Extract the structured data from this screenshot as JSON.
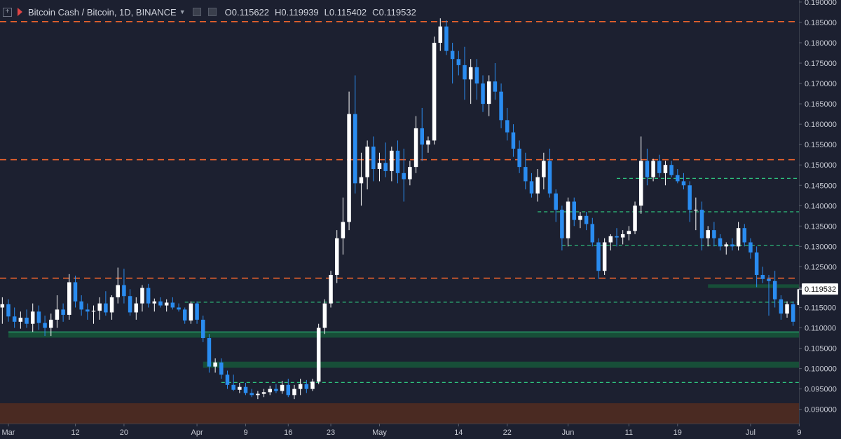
{
  "header": {
    "title": "Bitcoin Cash / Bitcoin, 1D, BINANCE",
    "ohlc": [
      {
        "label": "O",
        "value": "0.115622"
      },
      {
        "label": "H",
        "value": "0.119939"
      },
      {
        "label": "L",
        "value": "0.115402"
      },
      {
        "label": "C",
        "value": "0.119532"
      }
    ]
  },
  "chart_data": {
    "type": "candlestick",
    "symbol": "BCH/BTC",
    "interval": "1D",
    "exchange": "BINANCE",
    "ylim": [
      0.0865,
      0.1905
    ],
    "y_ticks": [
      "0.190000",
      "0.185000",
      "0.180000",
      "0.175000",
      "0.170000",
      "0.165000",
      "0.160000",
      "0.155000",
      "0.150000",
      "0.145000",
      "0.140000",
      "0.135000",
      "0.130000",
      "0.125000",
      "0.120000",
      "0.115000",
      "0.110000",
      "0.105000",
      "0.100000",
      "0.095000",
      "0.090000"
    ],
    "x_ticks": [
      "Mar",
      "12",
      "20",
      "Apr",
      "9",
      "16",
      "23",
      "May",
      "14",
      "22",
      "Jun",
      "11",
      "19",
      "Jul",
      "9"
    ],
    "x_tick_dates": [
      "2018-03-01",
      "2018-03-12",
      "2018-03-20",
      "2018-04-01",
      "2018-04-09",
      "2018-04-16",
      "2018-04-23",
      "2018-05-01",
      "2018-05-14",
      "2018-05-22",
      "2018-06-01",
      "2018-06-11",
      "2018-06-19",
      "2018-07-01",
      "2018-07-09"
    ],
    "last_price": "0.119532",
    "colors": {
      "background": "#1c2030",
      "up": "#ffffff",
      "down": "#2a8cf0",
      "resistance": "#e8622c",
      "support": "#2ec27e",
      "support_zone": "#17533a",
      "low_zone": "#4a2a22",
      "axis_text": "#c7cad3",
      "price_tag_bg": "#ffffff"
    },
    "resistance_lines": [
      0.1852,
      0.1513,
      0.1222
    ],
    "support_lines": [
      {
        "price": 0.1467,
        "from": "2018-06-09"
      },
      {
        "price": 0.1385,
        "from": "2018-05-27"
      },
      {
        "price": 0.1302,
        "from": "2018-05-31"
      },
      {
        "price": 0.1163,
        "from": "2018-03-30"
      },
      {
        "price": 0.0966,
        "from": "2018-04-05"
      }
    ],
    "solid_support_line": 0.109,
    "support_zones": [
      {
        "from": "2018-03-01",
        "low": 0.1076,
        "high": 0.109
      },
      {
        "from": "2018-04-02",
        "low": 0.1002,
        "high": 0.1017
      },
      {
        "from": "2018-06-24",
        "low": 0.1198,
        "high": 0.1207
      }
    ],
    "low_zone": {
      "low": 0.0865,
      "high": 0.0915
    },
    "candles": [
      {
        "date": "2018-02-24",
        "o": 0.1195,
        "h": 0.1228,
        "l": 0.116,
        "c": 0.1165
      },
      {
        "date": "2018-02-25",
        "o": 0.1165,
        "h": 0.1195,
        "l": 0.114,
        "c": 0.1155
      },
      {
        "date": "2018-02-26",
        "o": 0.1155,
        "h": 0.1185,
        "l": 0.114,
        "c": 0.117
      },
      {
        "date": "2018-02-27",
        "o": 0.117,
        "h": 0.1195,
        "l": 0.1098,
        "c": 0.115
      },
      {
        "date": "2018-02-28",
        "o": 0.115,
        "h": 0.1175,
        "l": 0.111,
        "c": 0.1158
      },
      {
        "date": "2018-03-01",
        "o": 0.1158,
        "h": 0.117,
        "l": 0.1115,
        "c": 0.1128
      },
      {
        "date": "2018-03-02",
        "o": 0.1128,
        "h": 0.115,
        "l": 0.11,
        "c": 0.1115
      },
      {
        "date": "2018-03-03",
        "o": 0.1115,
        "h": 0.114,
        "l": 0.1098,
        "c": 0.1125
      },
      {
        "date": "2018-03-04",
        "o": 0.1125,
        "h": 0.1145,
        "l": 0.11,
        "c": 0.111
      },
      {
        "date": "2018-03-05",
        "o": 0.111,
        "h": 0.116,
        "l": 0.109,
        "c": 0.114
      },
      {
        "date": "2018-03-06",
        "o": 0.114,
        "h": 0.1155,
        "l": 0.1095,
        "c": 0.1112
      },
      {
        "date": "2018-03-07",
        "o": 0.1112,
        "h": 0.113,
        "l": 0.108,
        "c": 0.11
      },
      {
        "date": "2018-03-08",
        "o": 0.11,
        "h": 0.1135,
        "l": 0.108,
        "c": 0.112
      },
      {
        "date": "2018-03-09",
        "o": 0.112,
        "h": 0.118,
        "l": 0.11,
        "c": 0.1145
      },
      {
        "date": "2018-03-10",
        "o": 0.1145,
        "h": 0.116,
        "l": 0.1115,
        "c": 0.1132
      },
      {
        "date": "2018-03-11",
        "o": 0.1132,
        "h": 0.1232,
        "l": 0.112,
        "c": 0.1212
      },
      {
        "date": "2018-03-12",
        "o": 0.1212,
        "h": 0.1228,
        "l": 0.115,
        "c": 0.1165
      },
      {
        "date": "2018-03-13",
        "o": 0.1165,
        "h": 0.118,
        "l": 0.113,
        "c": 0.1145
      },
      {
        "date": "2018-03-14",
        "o": 0.1145,
        "h": 0.116,
        "l": 0.112,
        "c": 0.114
      },
      {
        "date": "2018-03-15",
        "o": 0.114,
        "h": 0.1155,
        "l": 0.111,
        "c": 0.1142
      },
      {
        "date": "2018-03-16",
        "o": 0.1142,
        "h": 0.1175,
        "l": 0.112,
        "c": 0.116
      },
      {
        "date": "2018-03-17",
        "o": 0.116,
        "h": 0.119,
        "l": 0.113,
        "c": 0.1138
      },
      {
        "date": "2018-03-18",
        "o": 0.1138,
        "h": 0.118,
        "l": 0.112,
        "c": 0.1175
      },
      {
        "date": "2018-03-19",
        "o": 0.1175,
        "h": 0.1248,
        "l": 0.116,
        "c": 0.1205
      },
      {
        "date": "2018-03-20",
        "o": 0.1205,
        "h": 0.1245,
        "l": 0.116,
        "c": 0.1178
      },
      {
        "date": "2018-03-21",
        "o": 0.1178,
        "h": 0.1195,
        "l": 0.113,
        "c": 0.1138
      },
      {
        "date": "2018-03-22",
        "o": 0.1138,
        "h": 0.1175,
        "l": 0.112,
        "c": 0.116
      },
      {
        "date": "2018-03-23",
        "o": 0.116,
        "h": 0.1205,
        "l": 0.114,
        "c": 0.1198
      },
      {
        "date": "2018-03-24",
        "o": 0.1198,
        "h": 0.1208,
        "l": 0.115,
        "c": 0.116
      },
      {
        "date": "2018-03-25",
        "o": 0.116,
        "h": 0.1172,
        "l": 0.114,
        "c": 0.1165
      },
      {
        "date": "2018-03-26",
        "o": 0.1165,
        "h": 0.1175,
        "l": 0.115,
        "c": 0.1155
      },
      {
        "date": "2018-03-27",
        "o": 0.1155,
        "h": 0.117,
        "l": 0.114,
        "c": 0.1162
      },
      {
        "date": "2018-03-28",
        "o": 0.1162,
        "h": 0.1175,
        "l": 0.1145,
        "c": 0.115
      },
      {
        "date": "2018-03-29",
        "o": 0.115,
        "h": 0.116,
        "l": 0.114,
        "c": 0.1145
      },
      {
        "date": "2018-03-30",
        "o": 0.1145,
        "h": 0.115,
        "l": 0.111,
        "c": 0.1118
      },
      {
        "date": "2018-03-31",
        "o": 0.1118,
        "h": 0.1165,
        "l": 0.111,
        "c": 0.116
      },
      {
        "date": "2018-04-01",
        "o": 0.116,
        "h": 0.1165,
        "l": 0.111,
        "c": 0.112
      },
      {
        "date": "2018-04-02",
        "o": 0.112,
        "h": 0.113,
        "l": 0.1065,
        "c": 0.1075
      },
      {
        "date": "2018-04-03",
        "o": 0.1075,
        "h": 0.1085,
        "l": 0.099,
        "c": 0.1005
      },
      {
        "date": "2018-04-04",
        "o": 0.1005,
        "h": 0.1025,
        "l": 0.099,
        "c": 0.1015
      },
      {
        "date": "2018-04-05",
        "o": 0.1015,
        "h": 0.1025,
        "l": 0.0975,
        "c": 0.0985
      },
      {
        "date": "2018-04-06",
        "o": 0.0985,
        "h": 0.0995,
        "l": 0.095,
        "c": 0.096
      },
      {
        "date": "2018-04-07",
        "o": 0.096,
        "h": 0.0985,
        "l": 0.0945,
        "c": 0.0948
      },
      {
        "date": "2018-04-08",
        "o": 0.0948,
        "h": 0.0965,
        "l": 0.094,
        "c": 0.0955
      },
      {
        "date": "2018-04-09",
        "o": 0.0955,
        "h": 0.0965,
        "l": 0.0935,
        "c": 0.094
      },
      {
        "date": "2018-04-10",
        "o": 0.094,
        "h": 0.095,
        "l": 0.093,
        "c": 0.0935
      },
      {
        "date": "2018-04-11",
        "o": 0.0935,
        "h": 0.0945,
        "l": 0.0925,
        "c": 0.0938
      },
      {
        "date": "2018-04-12",
        "o": 0.0938,
        "h": 0.095,
        "l": 0.093,
        "c": 0.0942
      },
      {
        "date": "2018-04-13",
        "o": 0.0942,
        "h": 0.0958,
        "l": 0.0935,
        "c": 0.095
      },
      {
        "date": "2018-04-14",
        "o": 0.095,
        "h": 0.0962,
        "l": 0.094,
        "c": 0.0945
      },
      {
        "date": "2018-04-15",
        "o": 0.0945,
        "h": 0.097,
        "l": 0.0938,
        "c": 0.096
      },
      {
        "date": "2018-04-16",
        "o": 0.096,
        "h": 0.0975,
        "l": 0.093,
        "c": 0.0935
      },
      {
        "date": "2018-04-17",
        "o": 0.0935,
        "h": 0.096,
        "l": 0.0925,
        "c": 0.095
      },
      {
        "date": "2018-04-18",
        "o": 0.095,
        "h": 0.0975,
        "l": 0.0935,
        "c": 0.0962
      },
      {
        "date": "2018-04-19",
        "o": 0.0962,
        "h": 0.0972,
        "l": 0.094,
        "c": 0.095
      },
      {
        "date": "2018-04-20",
        "o": 0.095,
        "h": 0.0975,
        "l": 0.0945,
        "c": 0.0968
      },
      {
        "date": "2018-04-21",
        "o": 0.0968,
        "h": 0.111,
        "l": 0.0962,
        "c": 0.11
      },
      {
        "date": "2018-04-22",
        "o": 0.11,
        "h": 0.117,
        "l": 0.1085,
        "c": 0.116
      },
      {
        "date": "2018-04-23",
        "o": 0.116,
        "h": 0.124,
        "l": 0.115,
        "c": 0.123
      },
      {
        "date": "2018-04-24",
        "o": 0.123,
        "h": 0.134,
        "l": 0.121,
        "c": 0.132
      },
      {
        "date": "2018-04-25",
        "o": 0.132,
        "h": 0.142,
        "l": 0.128,
        "c": 0.136
      },
      {
        "date": "2018-04-26",
        "o": 0.136,
        "h": 0.168,
        "l": 0.134,
        "c": 0.1625
      },
      {
        "date": "2018-04-27",
        "o": 0.1625,
        "h": 0.172,
        "l": 0.143,
        "c": 0.1455
      },
      {
        "date": "2018-04-28",
        "o": 0.1455,
        "h": 0.153,
        "l": 0.14,
        "c": 0.147
      },
      {
        "date": "2018-04-29",
        "o": 0.147,
        "h": 0.156,
        "l": 0.144,
        "c": 0.1545
      },
      {
        "date": "2018-04-30",
        "o": 0.1545,
        "h": 0.157,
        "l": 0.146,
        "c": 0.149
      },
      {
        "date": "2018-05-01",
        "o": 0.149,
        "h": 0.153,
        "l": 0.146,
        "c": 0.1505
      },
      {
        "date": "2018-05-02",
        "o": 0.1505,
        "h": 0.1555,
        "l": 0.147,
        "c": 0.1485
      },
      {
        "date": "2018-05-03",
        "o": 0.1485,
        "h": 0.1545,
        "l": 0.146,
        "c": 0.1535
      },
      {
        "date": "2018-05-04",
        "o": 0.1535,
        "h": 0.156,
        "l": 0.1455,
        "c": 0.148
      },
      {
        "date": "2018-05-05",
        "o": 0.148,
        "h": 0.154,
        "l": 0.141,
        "c": 0.1465
      },
      {
        "date": "2018-05-06",
        "o": 0.1465,
        "h": 0.151,
        "l": 0.145,
        "c": 0.1495
      },
      {
        "date": "2018-05-07",
        "o": 0.1495,
        "h": 0.162,
        "l": 0.148,
        "c": 0.159
      },
      {
        "date": "2018-05-08",
        "o": 0.159,
        "h": 0.164,
        "l": 0.151,
        "c": 0.155
      },
      {
        "date": "2018-05-09",
        "o": 0.155,
        "h": 0.157,
        "l": 0.153,
        "c": 0.156
      },
      {
        "date": "2018-05-10",
        "o": 0.156,
        "h": 0.1815,
        "l": 0.155,
        "c": 0.18
      },
      {
        "date": "2018-05-11",
        "o": 0.18,
        "h": 0.186,
        "l": 0.178,
        "c": 0.184
      },
      {
        "date": "2018-05-12",
        "o": 0.184,
        "h": 0.1855,
        "l": 0.177,
        "c": 0.178
      },
      {
        "date": "2018-05-13",
        "o": 0.178,
        "h": 0.18,
        "l": 0.17,
        "c": 0.176
      },
      {
        "date": "2018-05-14",
        "o": 0.176,
        "h": 0.178,
        "l": 0.172,
        "c": 0.1745
      },
      {
        "date": "2018-05-15",
        "o": 0.1745,
        "h": 0.179,
        "l": 0.166,
        "c": 0.171
      },
      {
        "date": "2018-05-16",
        "o": 0.171,
        "h": 0.176,
        "l": 0.165,
        "c": 0.174
      },
      {
        "date": "2018-05-17",
        "o": 0.174,
        "h": 0.176,
        "l": 0.166,
        "c": 0.17
      },
      {
        "date": "2018-05-18",
        "o": 0.17,
        "h": 0.172,
        "l": 0.163,
        "c": 0.165
      },
      {
        "date": "2018-05-19",
        "o": 0.165,
        "h": 0.172,
        "l": 0.162,
        "c": 0.1705
      },
      {
        "date": "2018-05-20",
        "o": 0.1705,
        "h": 0.175,
        "l": 0.166,
        "c": 0.168
      },
      {
        "date": "2018-05-21",
        "o": 0.168,
        "h": 0.17,
        "l": 0.159,
        "c": 0.161
      },
      {
        "date": "2018-05-22",
        "o": 0.161,
        "h": 0.164,
        "l": 0.156,
        "c": 0.158
      },
      {
        "date": "2018-05-23",
        "o": 0.158,
        "h": 0.16,
        "l": 0.152,
        "c": 0.154
      },
      {
        "date": "2018-05-24",
        "o": 0.154,
        "h": 0.156,
        "l": 0.148,
        "c": 0.1495
      },
      {
        "date": "2018-05-25",
        "o": 0.1495,
        "h": 0.153,
        "l": 0.144,
        "c": 0.146
      },
      {
        "date": "2018-05-26",
        "o": 0.146,
        "h": 0.148,
        "l": 0.142,
        "c": 0.143
      },
      {
        "date": "2018-05-27",
        "o": 0.143,
        "h": 0.149,
        "l": 0.141,
        "c": 0.147
      },
      {
        "date": "2018-05-28",
        "o": 0.147,
        "h": 0.153,
        "l": 0.144,
        "c": 0.151
      },
      {
        "date": "2018-05-29",
        "o": 0.151,
        "h": 0.154,
        "l": 0.142,
        "c": 0.143
      },
      {
        "date": "2018-05-30",
        "o": 0.143,
        "h": 0.144,
        "l": 0.136,
        "c": 0.139
      },
      {
        "date": "2018-05-31",
        "o": 0.139,
        "h": 0.14,
        "l": 0.129,
        "c": 0.132
      },
      {
        "date": "2018-06-01",
        "o": 0.132,
        "h": 0.142,
        "l": 0.13,
        "c": 0.141
      },
      {
        "date": "2018-06-02",
        "o": 0.141,
        "h": 0.142,
        "l": 0.135,
        "c": 0.1365
      },
      {
        "date": "2018-06-03",
        "o": 0.1365,
        "h": 0.1385,
        "l": 0.1345,
        "c": 0.1375
      },
      {
        "date": "2018-06-04",
        "o": 0.1375,
        "h": 0.1385,
        "l": 0.134,
        "c": 0.1355
      },
      {
        "date": "2018-06-05",
        "o": 0.1355,
        "h": 0.137,
        "l": 0.13,
        "c": 0.131
      },
      {
        "date": "2018-06-06",
        "o": 0.131,
        "h": 0.132,
        "l": 0.122,
        "c": 0.124
      },
      {
        "date": "2018-06-07",
        "o": 0.124,
        "h": 0.132,
        "l": 0.123,
        "c": 0.131
      },
      {
        "date": "2018-06-08",
        "o": 0.131,
        "h": 0.133,
        "l": 0.129,
        "c": 0.1325
      },
      {
        "date": "2018-06-09",
        "o": 0.1325,
        "h": 0.1345,
        "l": 0.13,
        "c": 0.1322
      },
      {
        "date": "2018-06-10",
        "o": 0.1322,
        "h": 0.134,
        "l": 0.1305,
        "c": 0.133
      },
      {
        "date": "2018-06-11",
        "o": 0.133,
        "h": 0.135,
        "l": 0.1315,
        "c": 0.1338
      },
      {
        "date": "2018-06-12",
        "o": 0.1338,
        "h": 0.141,
        "l": 0.133,
        "c": 0.14
      },
      {
        "date": "2018-06-13",
        "o": 0.14,
        "h": 0.157,
        "l": 0.138,
        "c": 0.151
      },
      {
        "date": "2018-06-14",
        "o": 0.151,
        "h": 0.154,
        "l": 0.145,
        "c": 0.147
      },
      {
        "date": "2018-06-15",
        "o": 0.147,
        "h": 0.1515,
        "l": 0.146,
        "c": 0.151
      },
      {
        "date": "2018-06-16",
        "o": 0.151,
        "h": 0.1525,
        "l": 0.147,
        "c": 0.148
      },
      {
        "date": "2018-06-17",
        "o": 0.148,
        "h": 0.151,
        "l": 0.145,
        "c": 0.15
      },
      {
        "date": "2018-06-18",
        "o": 0.15,
        "h": 0.151,
        "l": 0.147,
        "c": 0.1475
      },
      {
        "date": "2018-06-19",
        "o": 0.1475,
        "h": 0.149,
        "l": 0.1455,
        "c": 0.146
      },
      {
        "date": "2018-06-20",
        "o": 0.146,
        "h": 0.148,
        "l": 0.144,
        "c": 0.145
      },
      {
        "date": "2018-06-21",
        "o": 0.145,
        "h": 0.146,
        "l": 0.136,
        "c": 0.139
      },
      {
        "date": "2018-06-22",
        "o": 0.139,
        "h": 0.142,
        "l": 0.134,
        "c": 0.139
      },
      {
        "date": "2018-06-23",
        "o": 0.139,
        "h": 0.141,
        "l": 0.129,
        "c": 0.132
      },
      {
        "date": "2018-06-24",
        "o": 0.132,
        "h": 0.135,
        "l": 0.13,
        "c": 0.134
      },
      {
        "date": "2018-06-25",
        "o": 0.134,
        "h": 0.136,
        "l": 0.13,
        "c": 0.132
      },
      {
        "date": "2018-06-26",
        "o": 0.132,
        "h": 0.133,
        "l": 0.129,
        "c": 0.13
      },
      {
        "date": "2018-06-27",
        "o": 0.13,
        "h": 0.131,
        "l": 0.128,
        "c": 0.1305
      },
      {
        "date": "2018-06-28",
        "o": 0.1305,
        "h": 0.132,
        "l": 0.129,
        "c": 0.13
      },
      {
        "date": "2018-06-29",
        "o": 0.13,
        "h": 0.136,
        "l": 0.129,
        "c": 0.1345
      },
      {
        "date": "2018-06-30",
        "o": 0.1345,
        "h": 0.1355,
        "l": 0.13,
        "c": 0.131
      },
      {
        "date": "2018-07-01",
        "o": 0.131,
        "h": 0.132,
        "l": 0.127,
        "c": 0.1285
      },
      {
        "date": "2018-07-02",
        "o": 0.1285,
        "h": 0.13,
        "l": 0.12,
        "c": 0.123
      },
      {
        "date": "2018-07-03",
        "o": 0.123,
        "h": 0.125,
        "l": 0.121,
        "c": 0.122
      },
      {
        "date": "2018-07-04",
        "o": 0.122,
        "h": 0.123,
        "l": 0.113,
        "c": 0.1215
      },
      {
        "date": "2018-07-05",
        "o": 0.1215,
        "h": 0.124,
        "l": 0.115,
        "c": 0.117
      },
      {
        "date": "2018-07-06",
        "o": 0.117,
        "h": 0.118,
        "l": 0.112,
        "c": 0.1135
      },
      {
        "date": "2018-07-07",
        "o": 0.1135,
        "h": 0.1165,
        "l": 0.1125,
        "c": 0.1158
      },
      {
        "date": "2018-07-08",
        "o": 0.1158,
        "h": 0.1165,
        "l": 0.1105,
        "c": 0.1115
      },
      {
        "date": "2018-07-09",
        "o": 0.1156,
        "h": 0.1199,
        "l": 0.1154,
        "c": 0.1195
      }
    ]
  }
}
